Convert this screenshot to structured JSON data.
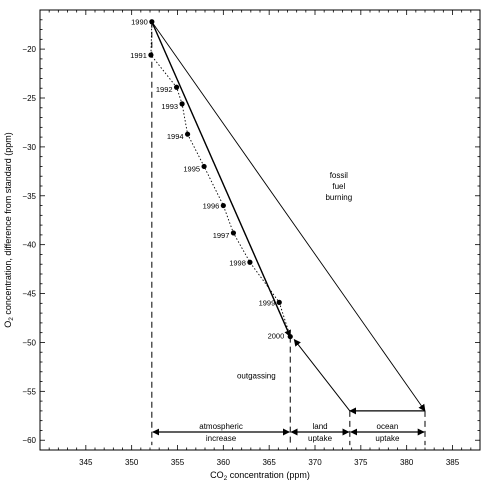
{
  "chart_data": {
    "type": "scatter",
    "xlabel": "CO2 concentration (ppm)",
    "ylabel": "O2 concentration, difference from standard (ppm)",
    "xlim": [
      340,
      388
    ],
    "ylim": [
      -61,
      -16
    ],
    "x_ticks": [
      345,
      350,
      355,
      360,
      365,
      370,
      375,
      380,
      385
    ],
    "y_ticks": [
      -20,
      -25,
      -30,
      -35,
      -40,
      -45,
      -50,
      -55,
      -60
    ],
    "series": [
      {
        "marker": "filled-circle",
        "labels": [
          "1990",
          "1991",
          "1992",
          "1993",
          "1994",
          "1995",
          "1996",
          "1997",
          "1998",
          "1999",
          "2000"
        ],
        "x": [
          352.2,
          352.1,
          354.9,
          355.5,
          356.1,
          357.9,
          360.0,
          361.1,
          362.9,
          366.1,
          367.3
        ],
        "y": [
          -17.2,
          -20.6,
          -23.9,
          -25.6,
          -28.7,
          -32.0,
          -36.0,
          -38.8,
          -41.8,
          -45.9,
          -49.4
        ]
      }
    ],
    "fit_lines": [
      {
        "style": "solid",
        "x": [
          352.2,
          367.3
        ],
        "y": [
          -17.2,
          -49.4
        ]
      },
      {
        "style": "dotted",
        "x": [
          352.2,
          367.3
        ],
        "y": [
          -17.2,
          -49.4
        ]
      }
    ],
    "annotations": {
      "fossil_fuel_burning": {
        "lines": [
          "fossil",
          "fuel",
          "burning"
        ],
        "from": [
          352.2,
          -17.2
        ],
        "to": [
          382.0,
          -57.0
        ]
      },
      "outgassing": {
        "text": "outgassing",
        "from": [
          373.8,
          -57.0
        ],
        "to": [
          367.3,
          -49.4
        ]
      },
      "atmospheric_increase": {
        "lines": [
          "atmospheric",
          "increase"
        ],
        "x_range": [
          352.2,
          367.3
        ]
      },
      "land_uptake": {
        "lines": [
          "land",
          "uptake"
        ],
        "x_range": [
          367.3,
          373.8
        ]
      },
      "ocean_uptake": {
        "lines": [
          "ocean",
          "uptake"
        ],
        "x_range": [
          373.8,
          382.0
        ]
      }
    },
    "vertical_dashed_lines": [
      {
        "x": 352.2,
        "y_from": -17.2,
        "y_to": -60.5
      },
      {
        "x": 367.3,
        "y_from": -49.4,
        "y_to": -60.5
      },
      {
        "x": 373.8,
        "y_from": -57.0,
        "y_to": -60.5
      },
      {
        "x": 382.0,
        "y_from": -57.0,
        "y_to": -60.5
      }
    ],
    "ocean_arrow": {
      "from": [
        382.0,
        -57.0
      ],
      "to": [
        373.8,
        -57.0
      ]
    },
    "grid": false,
    "legend": "none"
  }
}
